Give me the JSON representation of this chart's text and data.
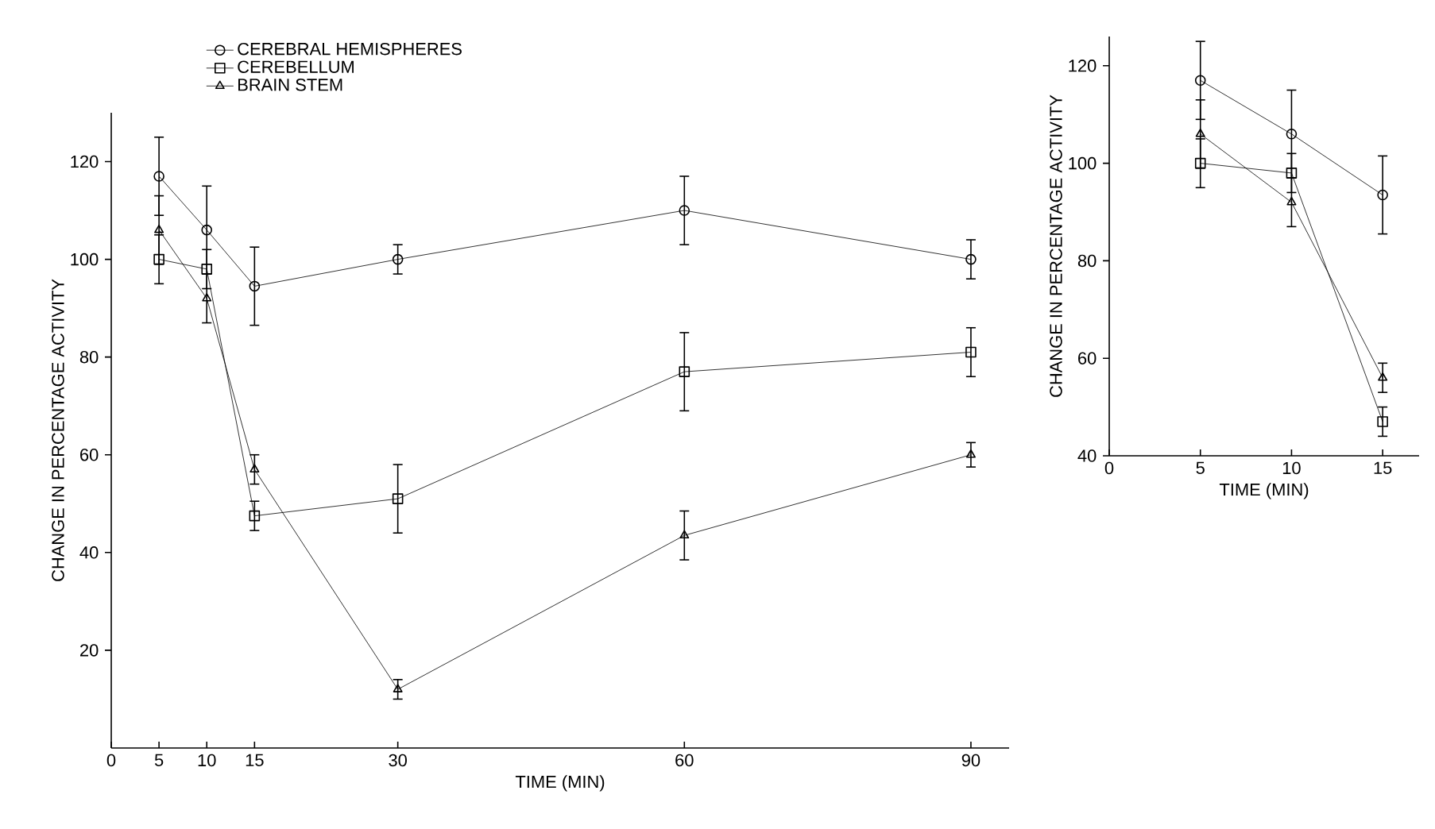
{
  "chart_data": [
    {
      "type": "line",
      "xlabel": "TIME (MIN)",
      "ylabel": "CHANGE IN PERCENTAGE ACTIVITY",
      "x": [
        5,
        10,
        15,
        30,
        60,
        90
      ],
      "xlim": [
        0,
        94
      ],
      "ylim": [
        0,
        130
      ],
      "xticks": [
        0,
        5,
        10,
        15,
        30,
        60,
        90
      ],
      "yticks": [
        20,
        40,
        60,
        80,
        100,
        120
      ],
      "legend": "top",
      "series": [
        {
          "name": "CEREBRAL HEMISPHERES",
          "color": "#000000",
          "marker": "circle",
          "values": [
            117,
            106,
            94.5,
            100,
            110,
            100
          ],
          "errors": [
            8,
            9,
            8,
            3,
            7,
            4
          ]
        },
        {
          "name": "CEREBELLUM",
          "color": "#000000",
          "marker": "square",
          "values": [
            100,
            98,
            47.5,
            51,
            77,
            81
          ],
          "errors": [
            5,
            4,
            3,
            7,
            8,
            5
          ]
        },
        {
          "name": "BRAIN STEM",
          "color": "#000000",
          "marker": "triangle",
          "values": [
            106,
            92,
            57,
            12,
            43.5,
            60
          ],
          "errors": [
            7,
            5,
            3,
            2,
            5,
            2.5
          ]
        }
      ]
    },
    {
      "type": "line",
      "xlabel": "TIME (MIN)",
      "ylabel": "CHANGE IN PERCENTAGE ACTIVITY",
      "x": [
        5,
        10,
        15
      ],
      "xlim": [
        0,
        17
      ],
      "ylim": [
        40,
        126
      ],
      "xticks": [
        0,
        5,
        10,
        15
      ],
      "yticks": [
        40,
        60,
        80,
        100,
        120
      ],
      "series": [
        {
          "color": "#000000",
          "marker": "circle",
          "values": [
            117,
            106,
            93.5
          ],
          "errors": [
            8,
            9,
            8
          ]
        },
        {
          "color": "#000000",
          "marker": "square",
          "values": [
            100,
            98,
            47
          ],
          "errors": [
            5,
            4,
            3
          ]
        },
        {
          "color": "#000000",
          "marker": "triangle",
          "values": [
            106,
            92,
            56
          ],
          "errors": [
            7,
            5,
            3
          ]
        }
      ]
    }
  ]
}
